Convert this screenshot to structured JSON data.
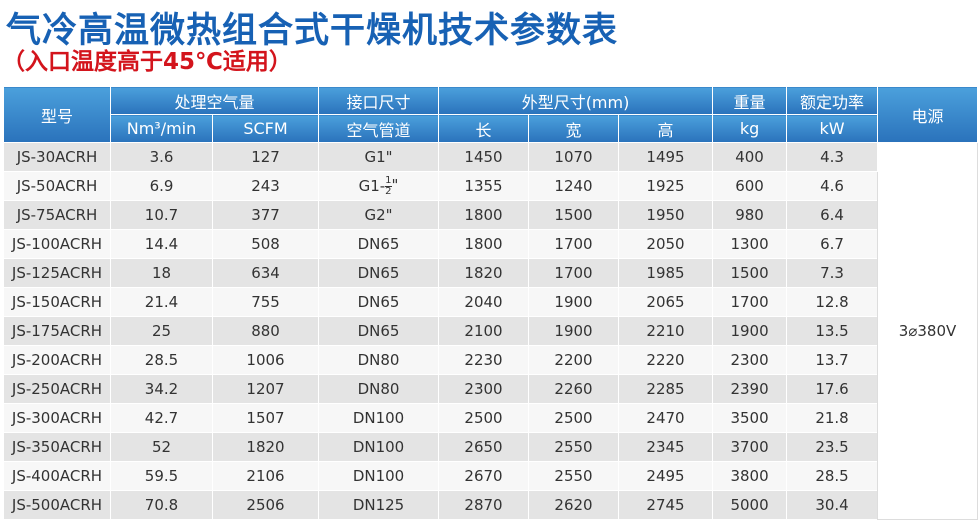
{
  "header": {
    "title": "气冷高温微热组合式干燥机技术参数表",
    "subtitle": "（入口温度高于45℃适用）"
  },
  "table": {
    "head1": [
      "型号",
      "处理空气量",
      "接口尺寸",
      "外型尺寸(mm)",
      "重量",
      "额定功率",
      "电源"
    ],
    "head2": [
      "Nm³/min",
      "SCFM",
      "空气管道",
      "长",
      "宽",
      "高",
      "kg",
      "kW"
    ],
    "power": "3⌀380V",
    "rows": [
      [
        "JS-30ACRH",
        3.6,
        127,
        "G1\"",
        1450,
        1070,
        1495,
        400,
        4.3
      ],
      [
        "JS-50ACRH",
        6.9,
        243,
        {
          "prefix": "G1-",
          "numerator": "1",
          "denominator": "2",
          "suffix": "\""
        },
        1355,
        1240,
        1925,
        600,
        4.6
      ],
      [
        "JS-75ACRH",
        10.7,
        377,
        "G2\"",
        1800,
        1500,
        1950,
        980,
        6.4
      ],
      [
        "JS-100ACRH",
        14.4,
        508,
        "DN65",
        1800,
        1700,
        2050,
        1300,
        6.7
      ],
      [
        "JS-125ACRH",
        18,
        634,
        "DN65",
        1820,
        1700,
        1985,
        1500,
        7.3
      ],
      [
        "JS-150ACRH",
        21.4,
        755,
        "DN65",
        2040,
        1900,
        2065,
        1700,
        12.8
      ],
      [
        "JS-175ACRH",
        25,
        880,
        "DN65",
        2100,
        1900,
        2210,
        1900,
        13.5
      ],
      [
        "JS-200ACRH",
        28.5,
        1006,
        "DN80",
        2230,
        2200,
        2220,
        2300,
        13.7
      ],
      [
        "JS-250ACRH",
        34.2,
        1207,
        "DN80",
        2300,
        2260,
        2285,
        2390,
        17.6
      ],
      [
        "JS-300ACRH",
        42.7,
        1507,
        "DN100",
        2500,
        2500,
        2470,
        3500,
        21.8
      ],
      [
        "JS-350ACRH",
        52,
        1820,
        "DN100",
        2650,
        2550,
        2345,
        3700,
        23.5
      ],
      [
        "JS-400ACRH",
        59.5,
        2106,
        "DN100",
        2670,
        2550,
        2495,
        3800,
        28.5
      ],
      [
        "JS-500ACRH",
        70.8,
        2506,
        "DN125",
        2870,
        2620,
        2745,
        5000,
        30.4
      ]
    ]
  }
}
